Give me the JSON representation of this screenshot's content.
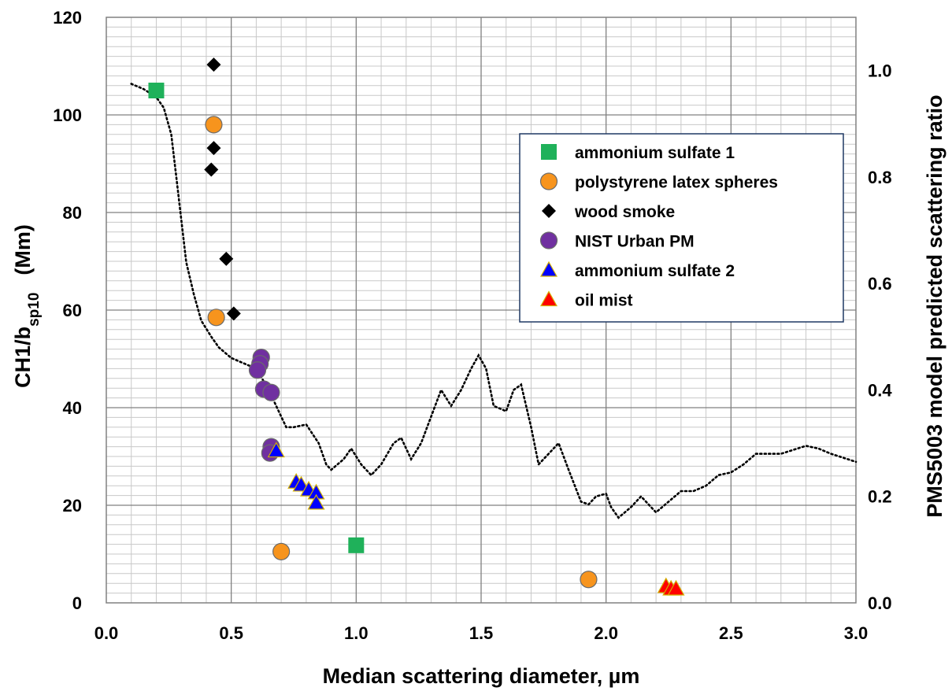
{
  "chart_data": {
    "type": "scatter",
    "x_axis": {
      "label": "Median scattering diameter, µm",
      "range": [
        0.0,
        3.0
      ],
      "ticks": [
        0.0,
        0.5,
        1.0,
        1.5,
        2.0,
        2.5,
        3.0
      ],
      "tick_labels": [
        "0.0",
        "0.5",
        "1.0",
        "1.5",
        "2.0",
        "2.5",
        "3.0"
      ]
    },
    "y_axis_left": {
      "label_main": "CH1/b",
      "label_sub": "sp10",
      "label_unit": "(Mm)",
      "range": [
        0,
        120
      ],
      "ticks": [
        0,
        20,
        40,
        60,
        80,
        100,
        120
      ],
      "tick_labels": [
        "0",
        "20",
        "40",
        "60",
        "80",
        "100",
        "120"
      ]
    },
    "y_axis_right": {
      "label": "PMS5003 model predicted scattering ratio",
      "range": [
        0.0,
        1.1
      ],
      "ticks": [
        0.0,
        0.2,
        0.4,
        0.6,
        0.8,
        1.0
      ],
      "tick_labels": [
        "0.0",
        "0.2",
        "0.4",
        "0.6",
        "0.8",
        "1.0"
      ]
    },
    "grid": true,
    "legend_position": "top-right",
    "series": [
      {
        "name": "ammonium sulfate 1",
        "marker": "square",
        "color": "#1fb15a",
        "points": [
          [
            0.2,
            105
          ],
          [
            1.0,
            11.8
          ]
        ]
      },
      {
        "name": "polystyrene latex spheres",
        "marker": "circle",
        "color": "#f7941d",
        "points": [
          [
            0.43,
            98
          ],
          [
            0.44,
            58.5
          ],
          [
            0.7,
            10.5
          ],
          [
            1.93,
            4.8
          ]
        ]
      },
      {
        "name": "wood smoke",
        "marker": "diamond",
        "color": "#000000",
        "points": [
          [
            0.43,
            110.3
          ],
          [
            0.43,
            93.2
          ],
          [
            0.42,
            88.8
          ],
          [
            0.48,
            70.5
          ],
          [
            0.51,
            59.3
          ]
        ]
      },
      {
        "name": "NIST Urban PM",
        "marker": "circle",
        "color": "#7030a0",
        "points": [
          [
            0.62,
            50.3
          ],
          [
            0.615,
            49
          ],
          [
            0.605,
            47.7
          ],
          [
            0.63,
            43.8
          ],
          [
            0.66,
            43.1
          ],
          [
            0.66,
            32
          ],
          [
            0.655,
            30.7
          ]
        ]
      },
      {
        "name": "ammonium sulfate 2",
        "marker": "triangle",
        "color": "#0000ff",
        "points": [
          [
            0.68,
            31.2
          ],
          [
            0.76,
            24.8
          ],
          [
            0.78,
            24.2
          ],
          [
            0.81,
            23.2
          ],
          [
            0.84,
            22.6
          ],
          [
            0.84,
            20.5
          ]
        ]
      },
      {
        "name": "oil mist",
        "marker": "triangle",
        "color": "#ff0000",
        "points": [
          [
            2.24,
            3.4
          ],
          [
            2.26,
            2.9
          ],
          [
            2.28,
            2.9
          ]
        ]
      }
    ],
    "model_curve": {
      "axis": "right",
      "style": "dotted",
      "color": "#000000",
      "points": [
        [
          0.1,
          0.975
        ],
        [
          0.15,
          0.965
        ],
        [
          0.2,
          0.95
        ],
        [
          0.23,
          0.93
        ],
        [
          0.26,
          0.88
        ],
        [
          0.28,
          0.8
        ],
        [
          0.3,
          0.72
        ],
        [
          0.32,
          0.64
        ],
        [
          0.35,
          0.58
        ],
        [
          0.38,
          0.53
        ],
        [
          0.42,
          0.5
        ],
        [
          0.45,
          0.48
        ],
        [
          0.5,
          0.46
        ],
        [
          0.55,
          0.45
        ],
        [
          0.6,
          0.44
        ],
        [
          0.65,
          0.4
        ],
        [
          0.7,
          0.35
        ],
        [
          0.72,
          0.33
        ],
        [
          0.75,
          0.33
        ],
        [
          0.8,
          0.335
        ],
        [
          0.85,
          0.3
        ],
        [
          0.88,
          0.26
        ],
        [
          0.9,
          0.25
        ],
        [
          0.95,
          0.27
        ],
        [
          0.98,
          0.29
        ],
        [
          1.02,
          0.26
        ],
        [
          1.06,
          0.24
        ],
        [
          1.1,
          0.26
        ],
        [
          1.15,
          0.3
        ],
        [
          1.18,
          0.31
        ],
        [
          1.22,
          0.27
        ],
        [
          1.26,
          0.3
        ],
        [
          1.3,
          0.35
        ],
        [
          1.34,
          0.4
        ],
        [
          1.38,
          0.37
        ],
        [
          1.42,
          0.4
        ],
        [
          1.46,
          0.44
        ],
        [
          1.49,
          0.465
        ],
        [
          1.52,
          0.44
        ],
        [
          1.55,
          0.37
        ],
        [
          1.6,
          0.36
        ],
        [
          1.63,
          0.4
        ],
        [
          1.66,
          0.41
        ],
        [
          1.7,
          0.33
        ],
        [
          1.73,
          0.26
        ],
        [
          1.77,
          0.28
        ],
        [
          1.81,
          0.3
        ],
        [
          1.85,
          0.25
        ],
        [
          1.9,
          0.19
        ],
        [
          1.93,
          0.185
        ],
        [
          1.96,
          0.2
        ],
        [
          2.0,
          0.205
        ],
        [
          2.02,
          0.18
        ],
        [
          2.05,
          0.16
        ],
        [
          2.1,
          0.18
        ],
        [
          2.14,
          0.2
        ],
        [
          2.18,
          0.18
        ],
        [
          2.2,
          0.17
        ],
        [
          2.25,
          0.19
        ],
        [
          2.3,
          0.21
        ],
        [
          2.35,
          0.21
        ],
        [
          2.4,
          0.22
        ],
        [
          2.45,
          0.24
        ],
        [
          2.5,
          0.245
        ],
        [
          2.55,
          0.26
        ],
        [
          2.6,
          0.28
        ],
        [
          2.7,
          0.28
        ],
        [
          2.8,
          0.295
        ],
        [
          2.85,
          0.29
        ],
        [
          2.9,
          0.28
        ],
        [
          3.0,
          0.265
        ]
      ]
    }
  }
}
